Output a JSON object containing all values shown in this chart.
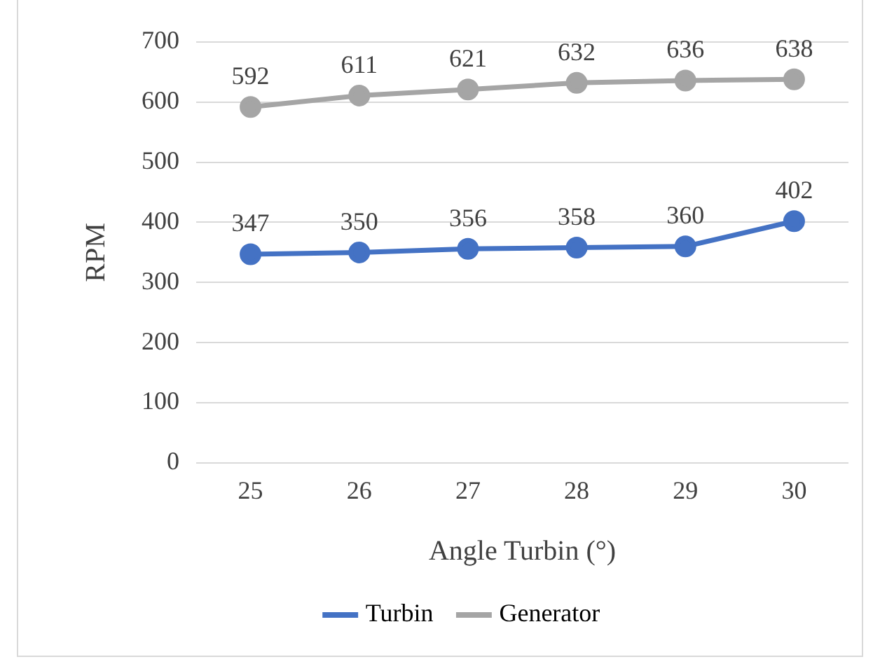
{
  "chart_data": {
    "type": "line",
    "xlabel": "Angle Turbin (°)",
    "ylabel": "RPM",
    "categories": [
      "25",
      "26",
      "27",
      "28",
      "29",
      "30"
    ],
    "series": [
      {
        "name": "Turbin",
        "color": "#4472c4",
        "values": [
          347,
          350,
          356,
          358,
          360,
          402
        ]
      },
      {
        "name": "Generator",
        "color": "#a5a5a5",
        "values": [
          592,
          611,
          621,
          632,
          636,
          638
        ]
      }
    ],
    "ylim": [
      0,
      700
    ],
    "yticks": [
      0,
      100,
      200,
      300,
      400,
      500,
      600,
      700
    ],
    "grid": "y",
    "legend": "bottom",
    "marker": "circle",
    "line_style": "solid",
    "data_labels": true
  }
}
